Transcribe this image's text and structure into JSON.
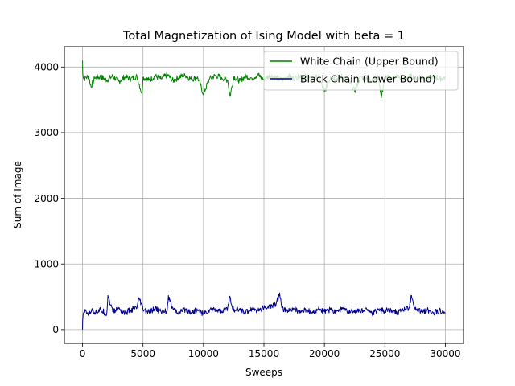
{
  "chart_data": {
    "type": "line",
    "title": "Total Magnetization of Ising Model with beta = 1",
    "xlabel": "Sweeps",
    "ylabel": "Sum of Image",
    "xlim": [
      -1500,
      31500
    ],
    "ylim": [
      -210,
      4310
    ],
    "xticks": [
      0,
      5000,
      10000,
      15000,
      20000,
      25000,
      30000
    ],
    "xtick_labels": [
      "0",
      "5000",
      "10000",
      "15000",
      "20000",
      "25000",
      "30000"
    ],
    "yticks": [
      0,
      1000,
      2000,
      3000,
      4000
    ],
    "ytick_labels": [
      "0",
      "1000",
      "2000",
      "3000",
      "4000"
    ],
    "grid": true,
    "legend_position": "top-right",
    "series": [
      {
        "name": "White Chain (Upper Bound)",
        "color": "#008000",
        "values_description_free": true,
        "x": [
          0,
          20,
          100,
          300,
          500,
          700,
          1000,
          1500,
          2000,
          2500,
          3000,
          3500,
          4000,
          4500,
          4900,
          5000,
          5500,
          6000,
          6500,
          7000,
          7500,
          8000,
          8500,
          9000,
          9500,
          10000,
          10500,
          11000,
          11500,
          12000,
          12200,
          12500,
          13000,
          13500,
          14000,
          14500,
          15000,
          15500,
          16000,
          16500,
          17000,
          17500,
          18000,
          18500,
          19000,
          19500,
          20000,
          20500,
          21000,
          21500,
          22000,
          22500,
          23000,
          23500,
          24000,
          24500,
          24700,
          25000,
          25500,
          26000,
          26500,
          27000,
          27500,
          28000,
          28500,
          29000,
          29500,
          30000
        ],
        "values": [
          4100,
          3900,
          3820,
          3840,
          3860,
          3700,
          3830,
          3850,
          3800,
          3860,
          3780,
          3850,
          3820,
          3860,
          3600,
          3840,
          3800,
          3860,
          3820,
          3880,
          3790,
          3850,
          3870,
          3810,
          3850,
          3590,
          3820,
          3870,
          3840,
          3800,
          3550,
          3850,
          3790,
          3860,
          3830,
          3880,
          3810,
          3870,
          3840,
          3800,
          3860,
          3820,
          3870,
          3850,
          3810,
          3860,
          3620,
          3850,
          3820,
          3860,
          3800,
          3630,
          3860,
          3830,
          3800,
          3840,
          3530,
          3850,
          3820,
          3860,
          3790,
          3870,
          3830,
          3850,
          3810,
          3860,
          3820,
          3840
        ]
      },
      {
        "name": "Black Chain (Lower Bound)",
        "color": "#00008b",
        "x": [
          0,
          20,
          100,
          300,
          500,
          800,
          1000,
          1500,
          2000,
          2100,
          2500,
          3000,
          3500,
          4000,
          4500,
          4700,
          5000,
          5500,
          6000,
          6500,
          7000,
          7100,
          7500,
          8000,
          8500,
          9000,
          9500,
          10000,
          10500,
          11000,
          11500,
          12000,
          12200,
          12500,
          13000,
          13500,
          14000,
          14500,
          15000,
          15500,
          16000,
          16300,
          16500,
          17000,
          17500,
          18000,
          18500,
          19000,
          19500,
          20000,
          20500,
          21000,
          21500,
          22000,
          22500,
          23000,
          23500,
          24000,
          24500,
          25000,
          25500,
          26000,
          26500,
          27000,
          27200,
          27500,
          28000,
          28500,
          29000,
          29500,
          30000
        ],
        "values": [
          0,
          160,
          250,
          280,
          230,
          320,
          260,
          300,
          240,
          520,
          270,
          320,
          250,
          300,
          330,
          470,
          300,
          260,
          320,
          270,
          290,
          520,
          300,
          250,
          310,
          260,
          300,
          240,
          290,
          320,
          260,
          330,
          500,
          280,
          310,
          260,
          320,
          290,
          330,
          350,
          380,
          560,
          330,
          280,
          320,
          260,
          300,
          250,
          320,
          270,
          300,
          280,
          320,
          260,
          300,
          270,
          310,
          250,
          300,
          280,
          310,
          260,
          300,
          330,
          520,
          310,
          270,
          300,
          260,
          290,
          250
        ]
      }
    ]
  }
}
